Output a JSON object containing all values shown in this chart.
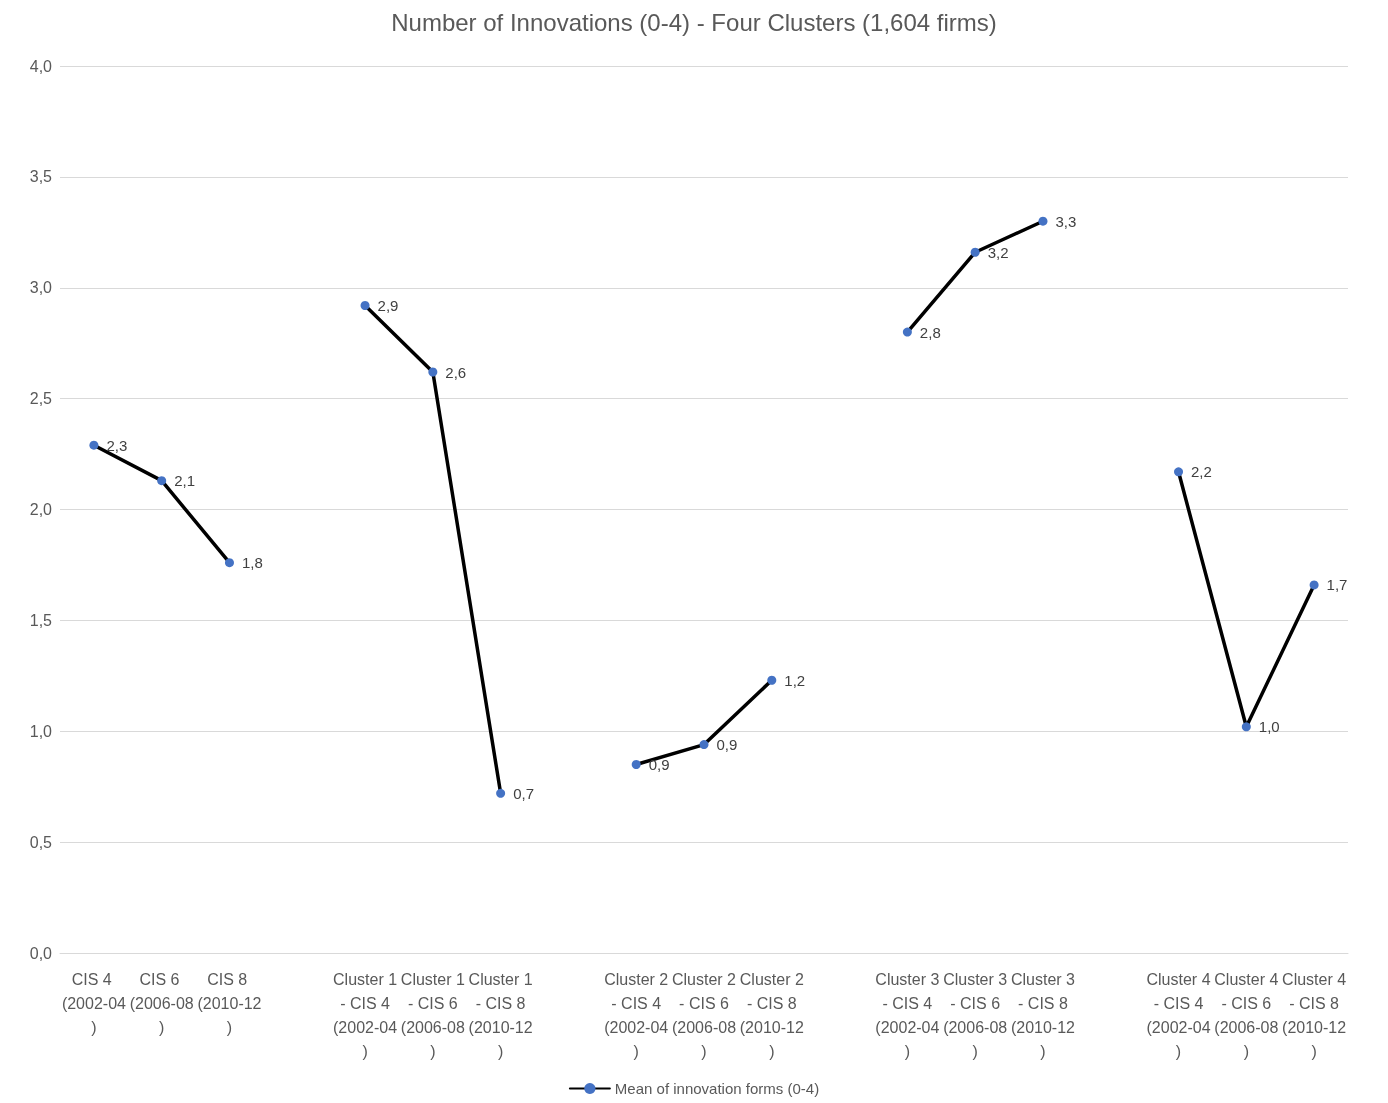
{
  "chart_data": {
    "type": "line",
    "title": "Number of Innovations (0-4) - Four Clusters (1,604 firms)",
    "categories": [
      "CIS 4 (2002-04)",
      "CIS 6 (2006-08)",
      "CIS 8 (2010-12)",
      null,
      "Cluster 1 - CIS 4 (2002-04)",
      "Cluster 1 - CIS 6 (2006-08)",
      "Cluster 1 - CIS 8 (2010-12)",
      null,
      "Cluster 2 - CIS 4 (2002-04)",
      "Cluster 2 - CIS 6 (2006-08)",
      "Cluster 2 - CIS 8 (2010-12)",
      null,
      "Cluster 3 - CIS 4 (2002-04)",
      "Cluster 3 - CIS 6 (2006-08)",
      "Cluster 3 - CIS 8 (2010-12)",
      null,
      "Cluster 4 - CIS 4 (2002-04)",
      "Cluster 4 - CIS 6 (2006-08)",
      "Cluster 4 - CIS 8 (2010-12)"
    ],
    "series": [
      {
        "name": "Mean of innovation forms (0-4)",
        "color": "#000000",
        "colors": [
          "#4472c4",
          "#4472c4",
          "#4472c4",
          null,
          "#4472c4",
          "#4472c4",
          "#4472c4",
          null,
          "#4472c4",
          "#4472c4",
          "#4472c4",
          null,
          "#4472c4",
          "#4472c4",
          "#4472c4",
          null,
          "#4472c4",
          "#4472c4",
          "#4472c4"
        ],
        "values": [
          2.29,
          2.13,
          1.76,
          null,
          2.92,
          2.62,
          0.72,
          null,
          0.85,
          0.94,
          1.23,
          null,
          2.8,
          3.16,
          3.3,
          null,
          2.17,
          1.02,
          1.66
        ],
        "value_labels": [
          "2,3",
          "2,1",
          "1,8",
          null,
          "2,9",
          "2,6",
          "0,7",
          null,
          "0,9",
          "0,9",
          "1,2",
          null,
          "2,8",
          "3,2",
          "3,3",
          null,
          "2,2",
          "1,0",
          "1,7"
        ]
      }
    ],
    "ylim": [
      0,
      4
    ],
    "yticks": [
      {
        "value": 0,
        "label": "0,0"
      },
      {
        "value": 0.5,
        "label": "0,5"
      },
      {
        "value": 1,
        "label": "1,0"
      },
      {
        "value": 1.5,
        "label": "1,5"
      },
      {
        "value": 2,
        "label": "2,0"
      },
      {
        "value": 2.5,
        "label": "2,5"
      },
      {
        "value": 3,
        "label": "3,0"
      },
      {
        "value": 3.5,
        "label": "3,5"
      },
      {
        "value": 4,
        "label": "4,0"
      }
    ],
    "grid": "y",
    "legend": "bottom",
    "marker": "circle",
    "line_style": "solid"
  }
}
